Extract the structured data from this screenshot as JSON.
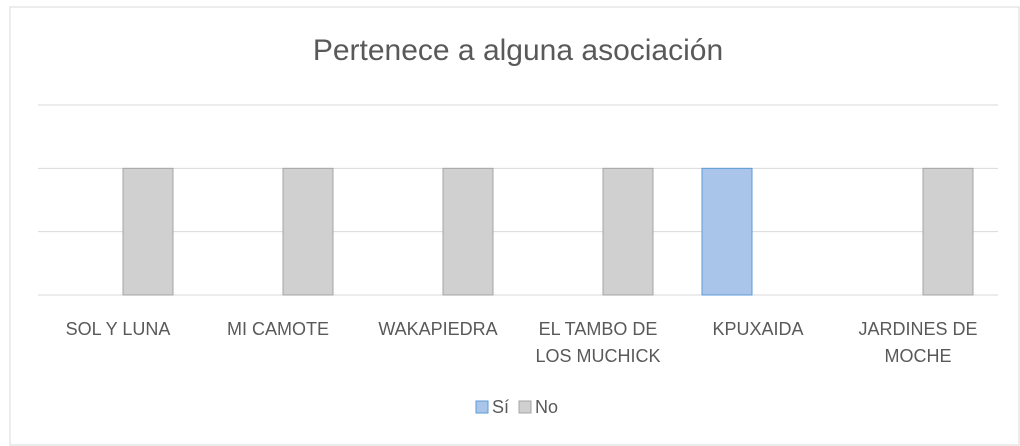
{
  "chart_data": {
    "type": "bar",
    "title": "Pertenece a alguna asociación",
    "categories": [
      "SOL Y LUNA",
      "MI CAMOTE",
      "WAKAPIEDRA",
      "EL TAMBO DE LOS MUCHICK",
      "KPUXAIDA",
      "JARDINES DE MOCHE"
    ],
    "series": [
      {
        "name": "Sí",
        "color": "#a9c6ea",
        "values": [
          0,
          0,
          0,
          0,
          1,
          0
        ]
      },
      {
        "name": "No",
        "color": "#d0d0d0",
        "values": [
          1,
          1,
          1,
          1,
          0,
          1
        ]
      }
    ],
    "ylim": [
      0,
      1.5
    ],
    "yticks": [
      0,
      0.5,
      1,
      1.5
    ],
    "grid": true,
    "legend": "bottom"
  }
}
